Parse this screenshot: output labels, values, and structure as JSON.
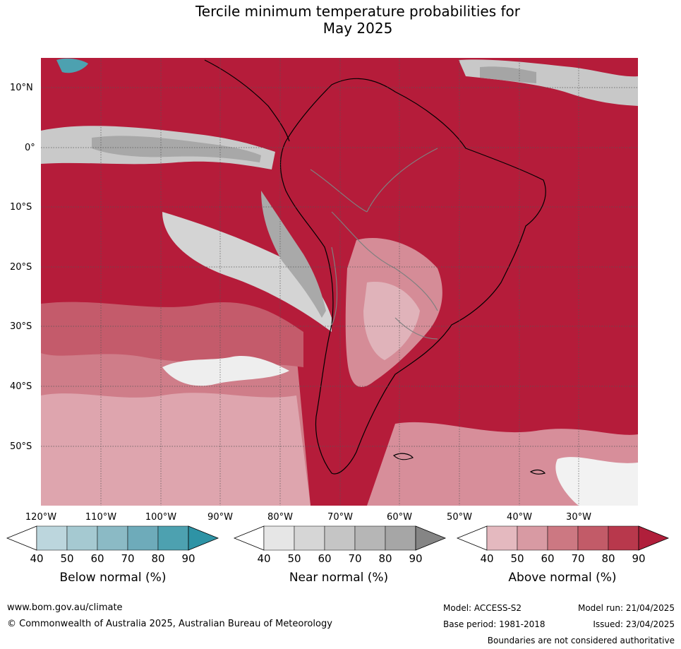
{
  "title_line1": "Tercile minimum temperature probabilities for",
  "title_line2": "May 2025",
  "map": {
    "lat_labels": [
      "10°N",
      "0°",
      "10°S",
      "20°S",
      "30°S",
      "40°S",
      "50°S"
    ],
    "lon_labels": [
      "120°W",
      "110°W",
      "100°W",
      "90°W",
      "80°W",
      "70°W",
      "60°W",
      "50°W",
      "40°W",
      "30°W"
    ],
    "colors": {
      "above_dominant": "#b51c3a",
      "ocean_sea": "#b81d3c",
      "near_normal": "#a6a6a6",
      "below_normal": "#3498aa",
      "coastline": "#000000",
      "borders": "#808080",
      "grid": "#555555"
    }
  },
  "legends": {
    "below": {
      "title": "Below normal (%)",
      "ticks": [
        "40",
        "50",
        "60",
        "70",
        "80",
        "90"
      ],
      "colors": [
        "#ffffff",
        "#bcd6dd",
        "#a5c9d1",
        "#8bbac5",
        "#6eabba",
        "#4da1b0",
        "#2e93a5"
      ]
    },
    "near": {
      "title": "Near normal (%)",
      "ticks": [
        "40",
        "50",
        "60",
        "70",
        "80",
        "90"
      ],
      "colors": [
        "#ffffff",
        "#e6e6e6",
        "#d6d6d6",
        "#c5c5c5",
        "#b6b6b6",
        "#a6a6a6",
        "#858585"
      ]
    },
    "above": {
      "title": "Above normal (%)",
      "ticks": [
        "40",
        "50",
        "60",
        "70",
        "80",
        "90"
      ],
      "colors": [
        "#ffffff",
        "#e4b9bf",
        "#d89aa3",
        "#cc7882",
        "#c25b68",
        "#b8384c",
        "#b01f3b"
      ]
    }
  },
  "footer": {
    "url": "www.bom.gov.au/climate",
    "copyright": "© Commonwealth of Australia 2025, Australian Bureau of Meteorology",
    "model": "Model: ACCESS-S2",
    "model_run": "Model run: 21/04/2025",
    "base_period": "Base period: 1981-2018",
    "issued": "Issued: 23/04/2025",
    "boundaries": "Boundaries are not considered authoritative"
  }
}
